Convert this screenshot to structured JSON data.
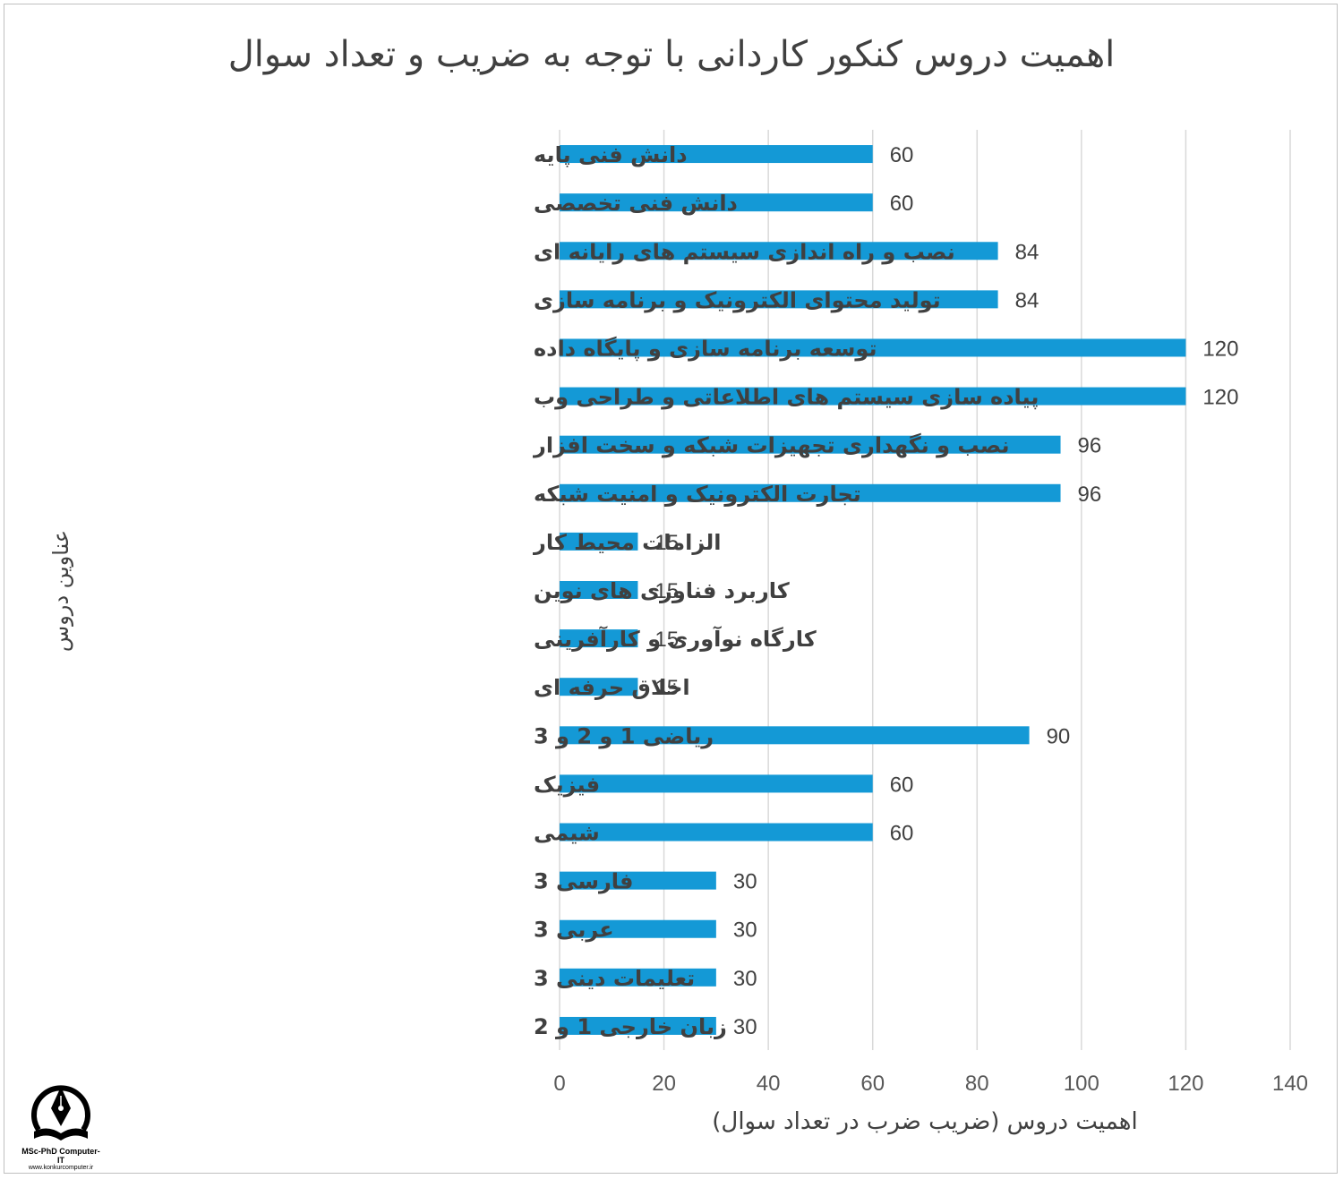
{
  "chart_data": {
    "type": "bar",
    "orientation": "horizontal",
    "title": "اهمیت دروس کنکور کاردانی با توجه به ضریب و تعداد سوال",
    "xlabel": "اهمیت دروس (ضریب ضرب در تعداد سوال)",
    "ylabel": "عناوین دروس",
    "xlim": [
      0,
      140
    ],
    "xticks": [
      0,
      20,
      40,
      60,
      80,
      100,
      120,
      140
    ],
    "grid": true,
    "bar_color": "#1499d6",
    "categories": [
      "دانش فنی پایه",
      "دانش فنی تخصصی",
      "نصب و راه اندازی سیستم های رایانه ای",
      "تولید محتوای الکترونیک و برنامه سازی",
      "توسعه برنامه سازی و پایگاه داده",
      "پیاده سازی سیستم های اطلاعاتی و طراحی وب",
      "نصب و نگهداری تجهیزات شبکه و سخت افزار",
      "تجارت الکترونیک و امنیت شبکه",
      "الزامات محیط کار",
      "کاربرد فناوری های نوین",
      "کارگاه نوآوری و کارآفرینی",
      "اخلاق حرفه ای",
      "ریاضی 1 و 2 و 3",
      "فیزیک",
      "شیمی",
      "فارسی 3",
      "عربی 3",
      "تعلیمات دینی 3",
      "زبان خارجی 1 و 2"
    ],
    "values": [
      60,
      60,
      84,
      84,
      120,
      120,
      96,
      96,
      15,
      15,
      15,
      15,
      90,
      60,
      60,
      30,
      30,
      30,
      30
    ]
  },
  "logo": {
    "line1": "MSc-PhD Computer-IT",
    "line2": "www.konkurcomputer.ir"
  }
}
